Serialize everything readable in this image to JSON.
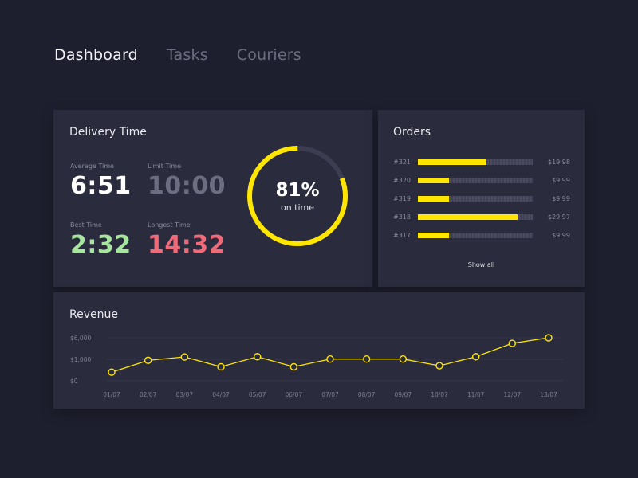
{
  "nav": {
    "tabs": [
      {
        "label": "Dashboard",
        "active": true
      },
      {
        "label": "Tasks",
        "active": false
      },
      {
        "label": "Couriers",
        "active": false
      }
    ]
  },
  "delivery": {
    "title": "Delivery Time",
    "average": {
      "label": "Average Time",
      "value": "6:51",
      "color": "#ffffff"
    },
    "limit": {
      "label": "Limit Time",
      "value": "10:00",
      "color": "#6c6d80"
    },
    "best": {
      "label": "Best Time",
      "value": "2:32",
      "color": "#a8e6a0"
    },
    "longest": {
      "label": "Longest Time",
      "value": "14:32",
      "color": "#ef6b7a"
    },
    "on_time": {
      "percent_text": "81%",
      "sub": "on time",
      "fraction": 0.81
    },
    "accent": "#ffe600"
  },
  "orders": {
    "title": "Orders",
    "rows": [
      {
        "id": "#321",
        "amount": "$19.98",
        "fraction": 0.57
      },
      {
        "id": "#320",
        "amount": "$9.99",
        "fraction": 0.26
      },
      {
        "id": "#319",
        "amount": "$9.99",
        "fraction": 0.26
      },
      {
        "id": "#318",
        "amount": "$29.97",
        "fraction": 0.83
      },
      {
        "id": "#317",
        "amount": "$9.99",
        "fraction": 0.26
      }
    ],
    "show_all_label": "Show all"
  },
  "revenue": {
    "title": "Revenue"
  },
  "chart_data": {
    "type": "line",
    "title": "Revenue",
    "x": [
      "01/07",
      "02/07",
      "03/07",
      "04/07",
      "05/07",
      "06/07",
      "07/07",
      "08/07",
      "09/07",
      "10/07",
      "11/07",
      "12/07",
      "13/07"
    ],
    "y_ticks": [
      "$6,000",
      "$1,000",
      "$0"
    ],
    "series": [
      {
        "values": [
          400,
          950,
          1550,
          650,
          1600,
          650,
          1050,
          1050,
          1050,
          700,
          1600,
          4700,
          6000
        ]
      }
    ],
    "color": "#ffe600",
    "grid": true
  }
}
